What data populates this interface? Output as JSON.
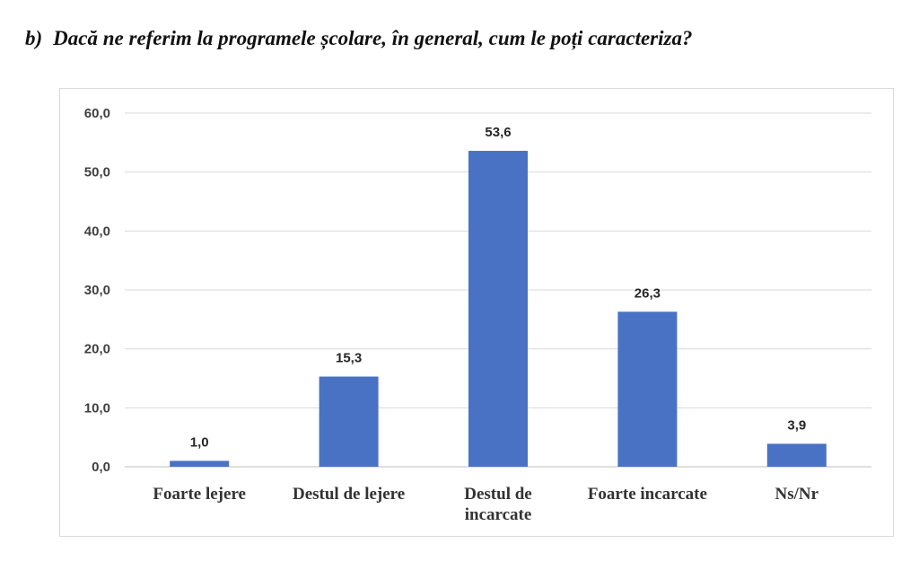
{
  "question": {
    "number": "b)",
    "text": "Dacă ne referim la programele școlare, în general, cum le poți caracteriza?"
  },
  "chart_data": {
    "type": "bar",
    "categories": [
      "Foarte lejere",
      "Destul de lejere",
      "Destul de incarcate",
      "Foarte incarcate",
      "Ns/Nr"
    ],
    "category_lines": [
      [
        "Foarte lejere"
      ],
      [
        "Destul de lejere"
      ],
      [
        "Destul de",
        "incarcate"
      ],
      [
        "Foarte incarcate"
      ],
      [
        "Ns/Nr"
      ]
    ],
    "values": [
      1.0,
      15.3,
      53.6,
      26.3,
      3.9
    ],
    "value_labels": [
      "1,0",
      "15,3",
      "53,6",
      "26,3",
      "3,9"
    ],
    "y_ticks": [
      "0,0",
      "10,0",
      "20,0",
      "30,0",
      "40,0",
      "50,0",
      "60,0"
    ],
    "ylim": [
      0,
      60
    ],
    "bar_color": "#4a72c4",
    "grid": true,
    "legend": "none",
    "title": "",
    "xlabel": "",
    "ylabel": ""
  }
}
